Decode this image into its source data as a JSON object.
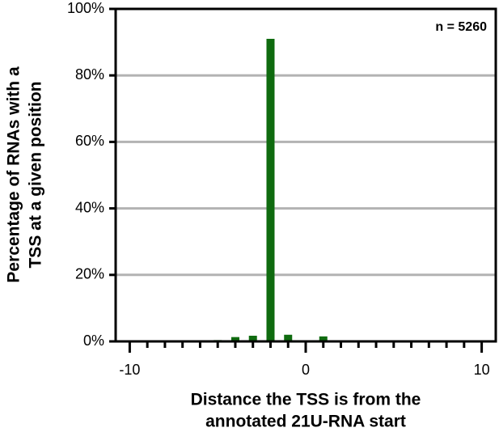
{
  "chart_data": {
    "type": "bar",
    "xlabel": [
      "Distance the TSS is from the",
      "annotated 21U-RNA start"
    ],
    "ylabel": [
      "Percentage of RNAs with a",
      "TSS at a given position"
    ],
    "annotation": "n = 5260",
    "x": [
      -10,
      -9,
      -8,
      -7,
      -6,
      -5,
      -4,
      -3,
      -2,
      -1,
      0,
      1,
      2,
      3,
      4,
      5,
      6,
      7,
      8,
      9,
      10
    ],
    "values": [
      0,
      0,
      0,
      0,
      0.2,
      0.4,
      1.3,
      1.7,
      91,
      2.0,
      0,
      1.5,
      0,
      0,
      0,
      0,
      0,
      0,
      0,
      0,
      0
    ],
    "color": "#0f6b0f",
    "xlim": [
      -10.8,
      10.8
    ],
    "xticks": [
      -10,
      0,
      10
    ],
    "xminorticks": [
      -9,
      -8,
      -7,
      -6,
      -5,
      -4,
      -3,
      -2,
      -1,
      1,
      2,
      3,
      4,
      5,
      6,
      7,
      8,
      9
    ],
    "ylim": [
      0,
      100
    ],
    "yticks": [
      {
        "value": 0,
        "label": "0%"
      },
      {
        "value": 20,
        "label": "20%"
      },
      {
        "value": 40,
        "label": "40%"
      },
      {
        "value": 60,
        "label": "60%"
      },
      {
        "value": 80,
        "label": "80%"
      },
      {
        "value": 100,
        "label": "100%"
      }
    ],
    "grid": true
  }
}
